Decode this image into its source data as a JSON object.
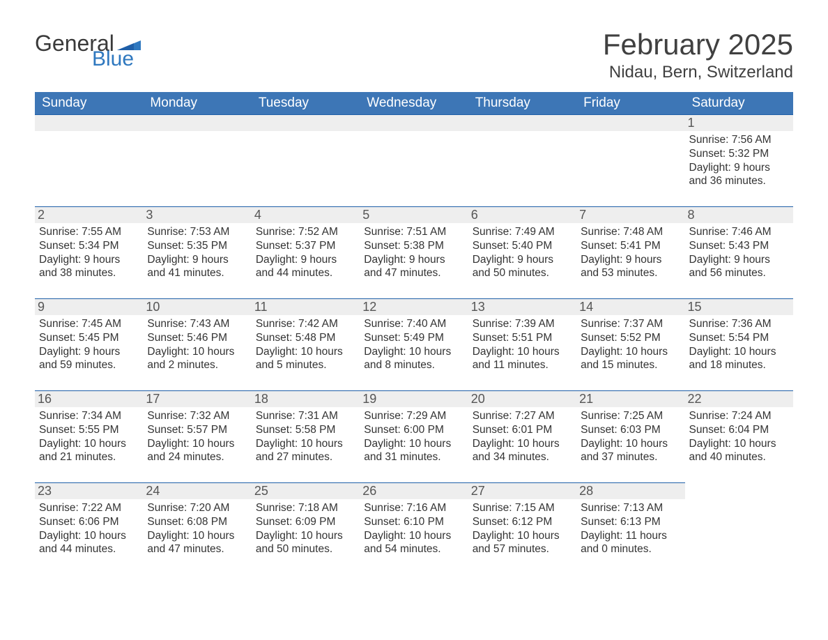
{
  "logo": {
    "text1": "General",
    "text2": "Blue",
    "flag_color": "#2f78bf"
  },
  "title": "February 2025",
  "location": "Nidau, Bern, Switzerland",
  "colors": {
    "header_bg": "#3d76b6",
    "header_text": "#ffffff",
    "daynum_bg": "#eeeeee",
    "daynum_border": "#1f5fa8",
    "body_text": "#333333",
    "title_text": "#404040",
    "logo_blue": "#2f78bf"
  },
  "day_names": [
    "Sunday",
    "Monday",
    "Tuesday",
    "Wednesday",
    "Thursday",
    "Friday",
    "Saturday"
  ],
  "weeks": [
    [
      {
        "day": "",
        "sunrise": "",
        "sunset": "",
        "daylight": ""
      },
      {
        "day": "",
        "sunrise": "",
        "sunset": "",
        "daylight": ""
      },
      {
        "day": "",
        "sunrise": "",
        "sunset": "",
        "daylight": ""
      },
      {
        "day": "",
        "sunrise": "",
        "sunset": "",
        "daylight": ""
      },
      {
        "day": "",
        "sunrise": "",
        "sunset": "",
        "daylight": ""
      },
      {
        "day": "",
        "sunrise": "",
        "sunset": "",
        "daylight": ""
      },
      {
        "day": "1",
        "sunrise": "Sunrise: 7:56 AM",
        "sunset": "Sunset: 5:32 PM",
        "daylight": "Daylight: 9 hours and 36 minutes."
      }
    ],
    [
      {
        "day": "2",
        "sunrise": "Sunrise: 7:55 AM",
        "sunset": "Sunset: 5:34 PM",
        "daylight": "Daylight: 9 hours and 38 minutes."
      },
      {
        "day": "3",
        "sunrise": "Sunrise: 7:53 AM",
        "sunset": "Sunset: 5:35 PM",
        "daylight": "Daylight: 9 hours and 41 minutes."
      },
      {
        "day": "4",
        "sunrise": "Sunrise: 7:52 AM",
        "sunset": "Sunset: 5:37 PM",
        "daylight": "Daylight: 9 hours and 44 minutes."
      },
      {
        "day": "5",
        "sunrise": "Sunrise: 7:51 AM",
        "sunset": "Sunset: 5:38 PM",
        "daylight": "Daylight: 9 hours and 47 minutes."
      },
      {
        "day": "6",
        "sunrise": "Sunrise: 7:49 AM",
        "sunset": "Sunset: 5:40 PM",
        "daylight": "Daylight: 9 hours and 50 minutes."
      },
      {
        "day": "7",
        "sunrise": "Sunrise: 7:48 AM",
        "sunset": "Sunset: 5:41 PM",
        "daylight": "Daylight: 9 hours and 53 minutes."
      },
      {
        "day": "8",
        "sunrise": "Sunrise: 7:46 AM",
        "sunset": "Sunset: 5:43 PM",
        "daylight": "Daylight: 9 hours and 56 minutes."
      }
    ],
    [
      {
        "day": "9",
        "sunrise": "Sunrise: 7:45 AM",
        "sunset": "Sunset: 5:45 PM",
        "daylight": "Daylight: 9 hours and 59 minutes."
      },
      {
        "day": "10",
        "sunrise": "Sunrise: 7:43 AM",
        "sunset": "Sunset: 5:46 PM",
        "daylight": "Daylight: 10 hours and 2 minutes."
      },
      {
        "day": "11",
        "sunrise": "Sunrise: 7:42 AM",
        "sunset": "Sunset: 5:48 PM",
        "daylight": "Daylight: 10 hours and 5 minutes."
      },
      {
        "day": "12",
        "sunrise": "Sunrise: 7:40 AM",
        "sunset": "Sunset: 5:49 PM",
        "daylight": "Daylight: 10 hours and 8 minutes."
      },
      {
        "day": "13",
        "sunrise": "Sunrise: 7:39 AM",
        "sunset": "Sunset: 5:51 PM",
        "daylight": "Daylight: 10 hours and 11 minutes."
      },
      {
        "day": "14",
        "sunrise": "Sunrise: 7:37 AM",
        "sunset": "Sunset: 5:52 PM",
        "daylight": "Daylight: 10 hours and 15 minutes."
      },
      {
        "day": "15",
        "sunrise": "Sunrise: 7:36 AM",
        "sunset": "Sunset: 5:54 PM",
        "daylight": "Daylight: 10 hours and 18 minutes."
      }
    ],
    [
      {
        "day": "16",
        "sunrise": "Sunrise: 7:34 AM",
        "sunset": "Sunset: 5:55 PM",
        "daylight": "Daylight: 10 hours and 21 minutes."
      },
      {
        "day": "17",
        "sunrise": "Sunrise: 7:32 AM",
        "sunset": "Sunset: 5:57 PM",
        "daylight": "Daylight: 10 hours and 24 minutes."
      },
      {
        "day": "18",
        "sunrise": "Sunrise: 7:31 AM",
        "sunset": "Sunset: 5:58 PM",
        "daylight": "Daylight: 10 hours and 27 minutes."
      },
      {
        "day": "19",
        "sunrise": "Sunrise: 7:29 AM",
        "sunset": "Sunset: 6:00 PM",
        "daylight": "Daylight: 10 hours and 31 minutes."
      },
      {
        "day": "20",
        "sunrise": "Sunrise: 7:27 AM",
        "sunset": "Sunset: 6:01 PM",
        "daylight": "Daylight: 10 hours and 34 minutes."
      },
      {
        "day": "21",
        "sunrise": "Sunrise: 7:25 AM",
        "sunset": "Sunset: 6:03 PM",
        "daylight": "Daylight: 10 hours and 37 minutes."
      },
      {
        "day": "22",
        "sunrise": "Sunrise: 7:24 AM",
        "sunset": "Sunset: 6:04 PM",
        "daylight": "Daylight: 10 hours and 40 minutes."
      }
    ],
    [
      {
        "day": "23",
        "sunrise": "Sunrise: 7:22 AM",
        "sunset": "Sunset: 6:06 PM",
        "daylight": "Daylight: 10 hours and 44 minutes."
      },
      {
        "day": "24",
        "sunrise": "Sunrise: 7:20 AM",
        "sunset": "Sunset: 6:08 PM",
        "daylight": "Daylight: 10 hours and 47 minutes."
      },
      {
        "day": "25",
        "sunrise": "Sunrise: 7:18 AM",
        "sunset": "Sunset: 6:09 PM",
        "daylight": "Daylight: 10 hours and 50 minutes."
      },
      {
        "day": "26",
        "sunrise": "Sunrise: 7:16 AM",
        "sunset": "Sunset: 6:10 PM",
        "daylight": "Daylight: 10 hours and 54 minutes."
      },
      {
        "day": "27",
        "sunrise": "Sunrise: 7:15 AM",
        "sunset": "Sunset: 6:12 PM",
        "daylight": "Daylight: 10 hours and 57 minutes."
      },
      {
        "day": "28",
        "sunrise": "Sunrise: 7:13 AM",
        "sunset": "Sunset: 6:13 PM",
        "daylight": "Daylight: 11 hours and 0 minutes."
      },
      {
        "day": "",
        "sunrise": "",
        "sunset": "",
        "daylight": ""
      }
    ]
  ]
}
